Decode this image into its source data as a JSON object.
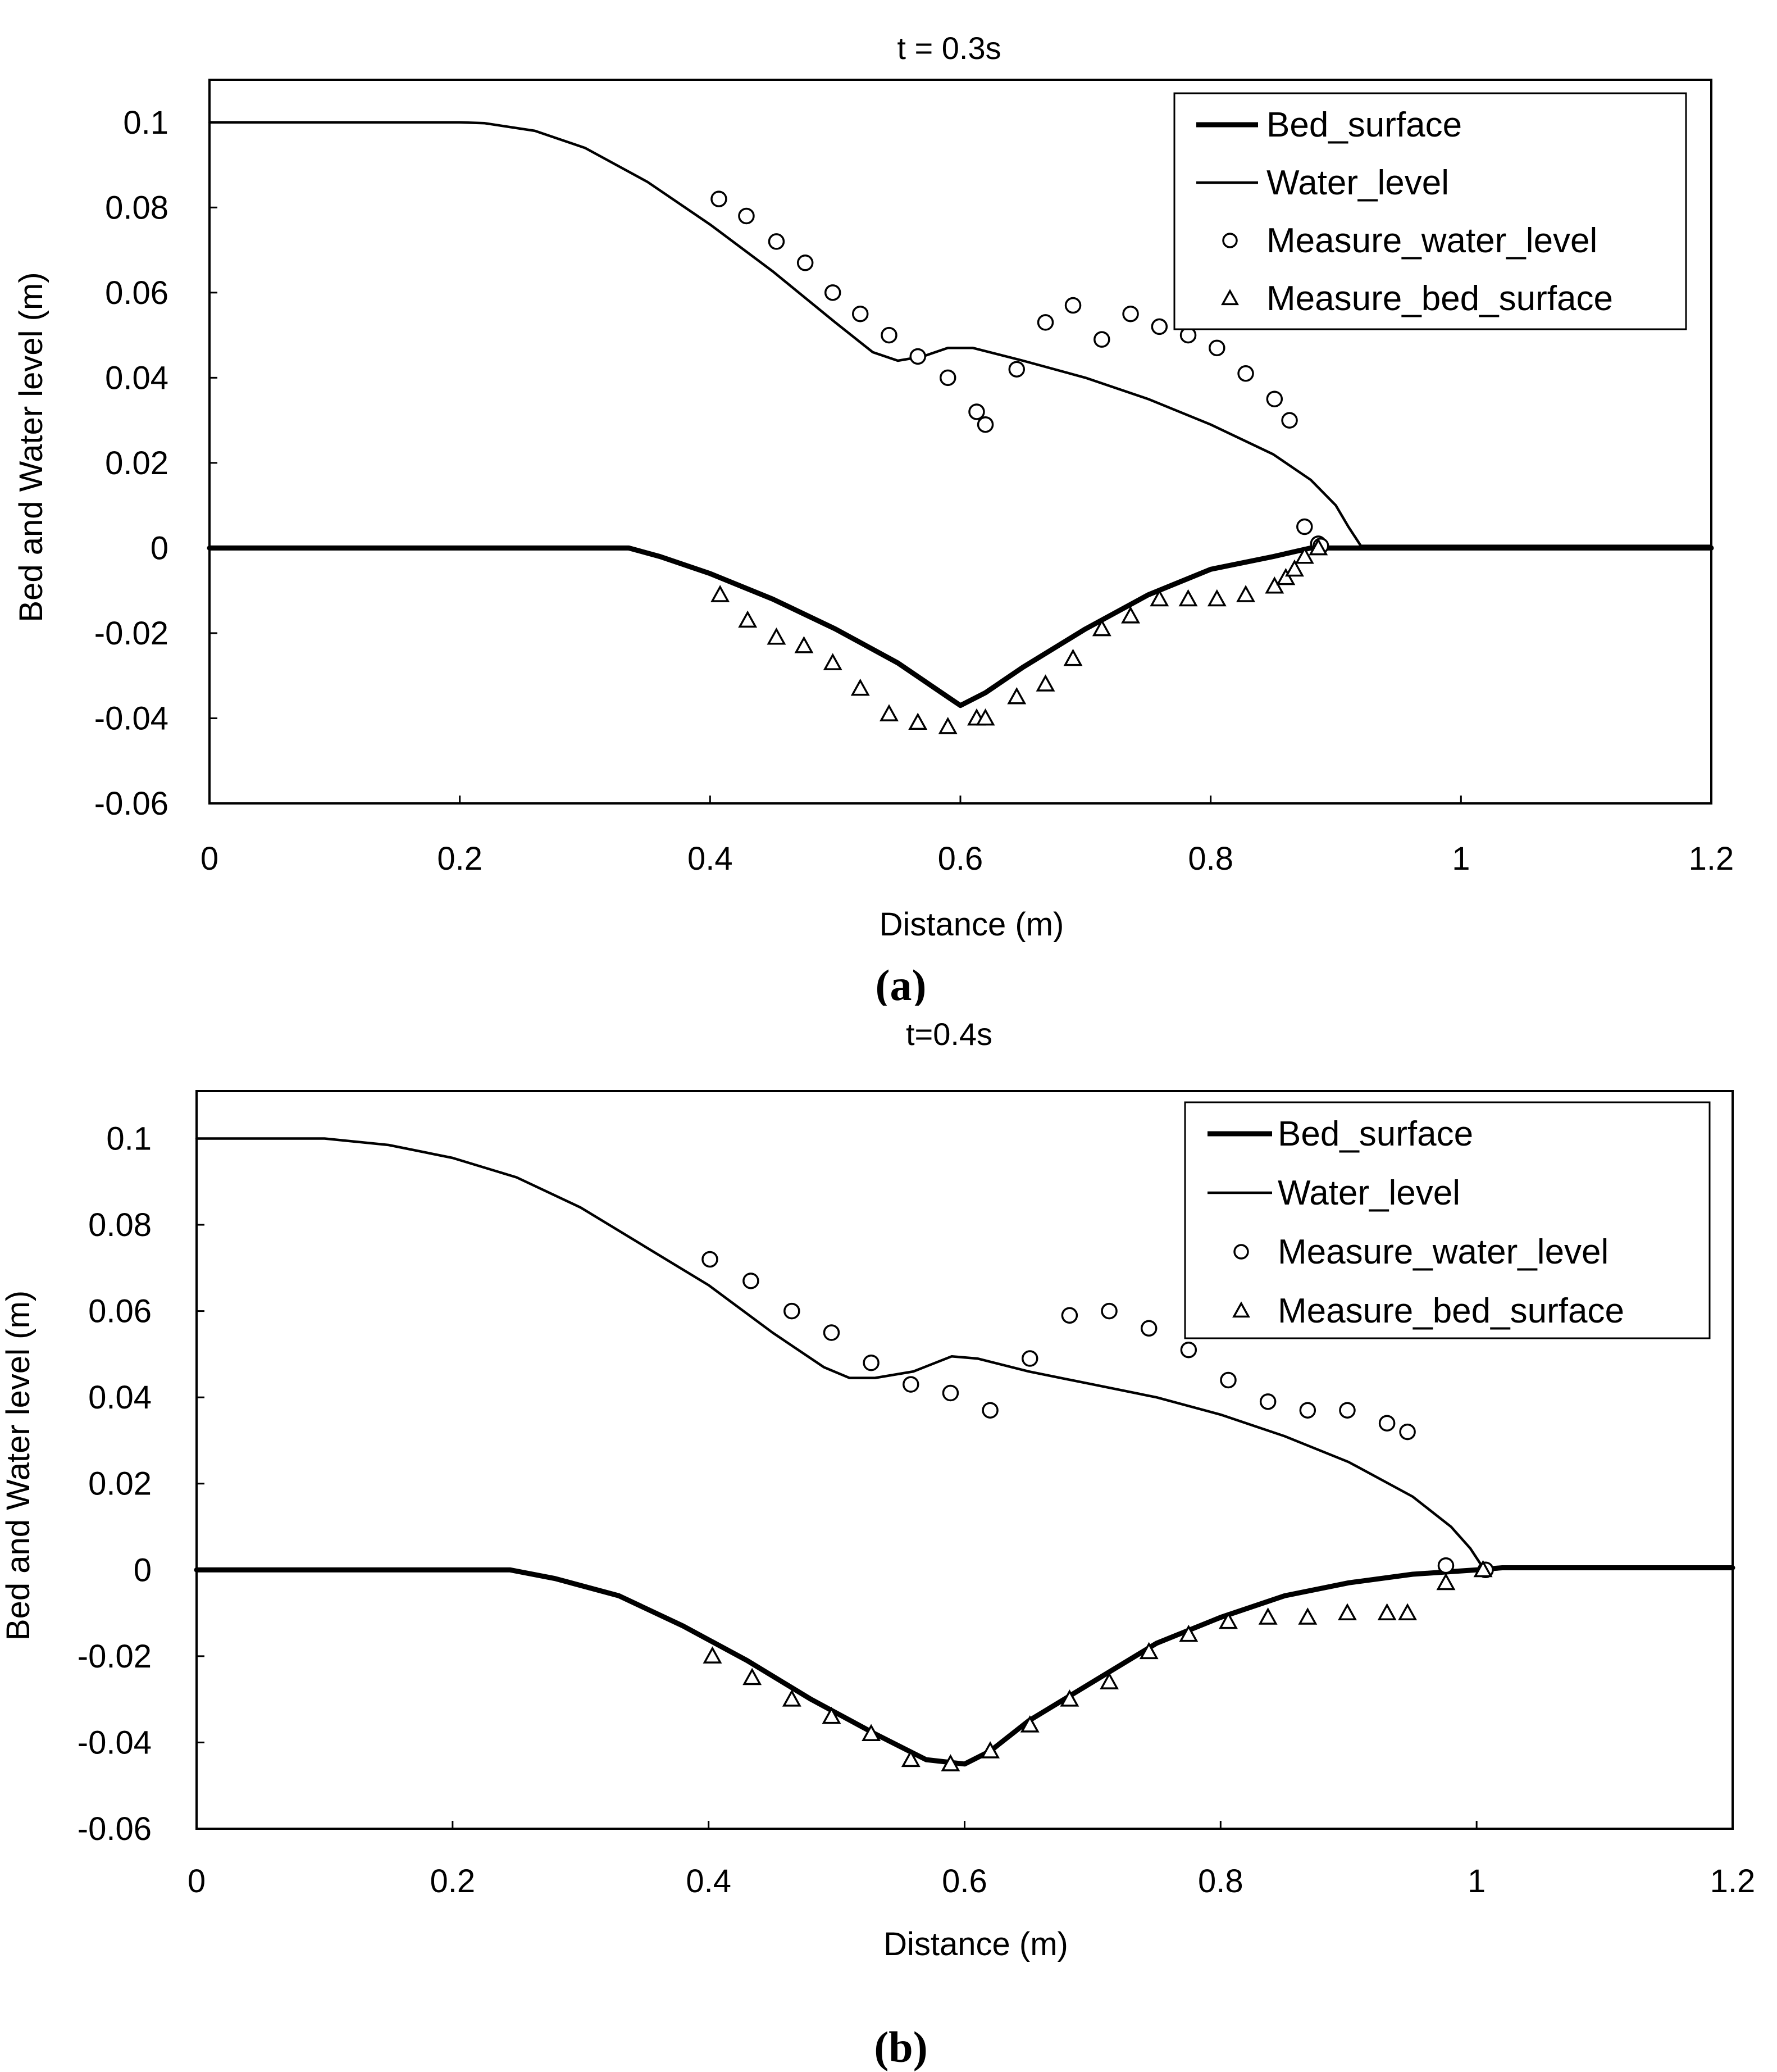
{
  "chart_data": [
    {
      "id": "a",
      "type": "line",
      "title": "t = 0.3s",
      "caption_letter": "a",
      "xlabel": "Distance (m)",
      "ylabel": "Bed and Water level (m)",
      "xlim": [
        0,
        1.2
      ],
      "ylim": [
        -0.06,
        0.11
      ],
      "xticks": [
        "0",
        "0.2",
        "0.4",
        "0.6",
        "0.8",
        "1",
        "1.2"
      ],
      "xtick_values": [
        0,
        0.2,
        0.4,
        0.6,
        0.8,
        1.0,
        1.2
      ],
      "yticks": [
        "0.1",
        "0.08",
        "0.06",
        "0.04",
        "0.02",
        "0",
        "-0.02",
        "-0.04",
        "-0.06"
      ],
      "ytick_values": [
        0.1,
        0.08,
        0.06,
        0.04,
        0.02,
        0,
        -0.02,
        -0.04,
        -0.06
      ],
      "legend": {
        "position": "top-right"
      },
      "series": [
        {
          "name": "Bed_surface",
          "kind": "line",
          "style": "thick",
          "x": [
            0,
            0.335,
            0.36,
            0.4,
            0.45,
            0.5,
            0.55,
            0.59,
            0.6,
            0.62,
            0.65,
            0.7,
            0.75,
            0.8,
            0.85,
            0.88,
            0.9,
            1.2
          ],
          "y": [
            0,
            0,
            -0.002,
            -0.006,
            -0.012,
            -0.019,
            -0.027,
            -0.035,
            -0.037,
            -0.034,
            -0.028,
            -0.019,
            -0.011,
            -0.005,
            -0.002,
            0,
            0,
            0
          ]
        },
        {
          "name": "Water_level",
          "kind": "line",
          "style": "thin",
          "x": [
            0,
            0.2,
            0.22,
            0.26,
            0.3,
            0.35,
            0.4,
            0.45,
            0.5,
            0.53,
            0.55,
            0.57,
            0.59,
            0.61,
            0.65,
            0.7,
            0.75,
            0.8,
            0.85,
            0.88,
            0.9,
            0.91,
            0.92,
            1.2
          ],
          "y": [
            0.1,
            0.1,
            0.0998,
            0.098,
            0.094,
            0.086,
            0.076,
            0.065,
            0.053,
            0.046,
            0.044,
            0.045,
            0.047,
            0.047,
            0.044,
            0.04,
            0.035,
            0.029,
            0.022,
            0.016,
            0.01,
            0.005,
            0.0005,
            0.0005
          ]
        },
        {
          "name": "Measure_water_level",
          "kind": "scatter",
          "marker": "circle",
          "x": [
            0.407,
            0.429,
            0.453,
            0.476,
            0.498,
            0.52,
            0.543,
            0.566,
            0.59,
            0.613,
            0.62,
            0.645,
            0.668,
            0.69,
            0.713,
            0.736,
            0.759,
            0.782,
            0.805,
            0.828,
            0.851,
            0.863,
            0.875,
            0.886,
            0.888
          ],
          "y": [
            0.082,
            0.078,
            0.072,
            0.067,
            0.06,
            0.055,
            0.05,
            0.045,
            0.04,
            0.032,
            0.029,
            0.042,
            0.053,
            0.057,
            0.049,
            0.055,
            0.052,
            0.05,
            0.047,
            0.041,
            0.035,
            0.03,
            0.005,
            0.001,
            0.0005
          ]
        },
        {
          "name": "Measure_bed_surface",
          "kind": "scatter",
          "marker": "triangle",
          "x": [
            0.408,
            0.43,
            0.453,
            0.475,
            0.498,
            0.52,
            0.543,
            0.566,
            0.59,
            0.613,
            0.62,
            0.645,
            0.668,
            0.69,
            0.713,
            0.736,
            0.759,
            0.782,
            0.805,
            0.828,
            0.851,
            0.86,
            0.867,
            0.875,
            0.886
          ],
          "y": [
            -0.011,
            -0.017,
            -0.021,
            -0.023,
            -0.027,
            -0.033,
            -0.039,
            -0.041,
            -0.042,
            -0.04,
            -0.04,
            -0.035,
            -0.032,
            -0.026,
            -0.019,
            -0.016,
            -0.012,
            -0.012,
            -0.012,
            -0.011,
            -0.009,
            -0.007,
            -0.005,
            -0.002,
            0
          ]
        }
      ]
    },
    {
      "id": "b",
      "type": "line",
      "title": "t=0.4s",
      "caption_letter": "b",
      "xlabel": "Distance (m)",
      "ylabel": "Bed and Water level (m)",
      "xlim": [
        0,
        1.2
      ],
      "ylim": [
        -0.06,
        0.111
      ],
      "xticks": [
        "0",
        "0.2",
        "0.4",
        "0.6",
        "0.8",
        "1",
        "1.2"
      ],
      "xtick_values": [
        0,
        0.2,
        0.4,
        0.6,
        0.8,
        1.0,
        1.2
      ],
      "yticks": [
        "0.1",
        "0.08",
        "0.06",
        "0.04",
        "0.02",
        "0",
        "-0.02",
        "-0.04",
        "-0.06"
      ],
      "ytick_values": [
        0.1,
        0.08,
        0.06,
        0.04,
        0.02,
        0,
        -0.02,
        -0.04,
        -0.06
      ],
      "legend": {
        "position": "top-right"
      },
      "series": [
        {
          "name": "Bed_surface",
          "kind": "line",
          "style": "thick",
          "x": [
            0,
            0.245,
            0.28,
            0.33,
            0.38,
            0.43,
            0.48,
            0.53,
            0.57,
            0.6,
            0.62,
            0.65,
            0.7,
            0.75,
            0.8,
            0.85,
            0.9,
            0.95,
            1.0,
            1.02,
            1.2
          ],
          "y": [
            0,
            0,
            -0.002,
            -0.006,
            -0.013,
            -0.021,
            -0.03,
            -0.038,
            -0.044,
            -0.045,
            -0.042,
            -0.035,
            -0.026,
            -0.017,
            -0.011,
            -0.006,
            -0.003,
            -0.001,
            0,
            0.0005,
            0.0005
          ]
        },
        {
          "name": "Water_level",
          "kind": "line",
          "style": "thin",
          "x": [
            0,
            0.1,
            0.15,
            0.2,
            0.25,
            0.3,
            0.35,
            0.4,
            0.45,
            0.49,
            0.51,
            0.53,
            0.56,
            0.59,
            0.61,
            0.65,
            0.7,
            0.75,
            0.8,
            0.85,
            0.9,
            0.95,
            0.98,
            0.995,
            1.005,
            1.2
          ],
          "y": [
            0.1,
            0.1,
            0.0985,
            0.0955,
            0.091,
            0.084,
            0.075,
            0.066,
            0.055,
            0.047,
            0.0445,
            0.0445,
            0.046,
            0.0495,
            0.049,
            0.046,
            0.043,
            0.04,
            0.036,
            0.031,
            0.025,
            0.017,
            0.01,
            0.005,
            0.0005,
            0.0005
          ]
        },
        {
          "name": "Measure_water_level",
          "kind": "scatter",
          "marker": "circle",
          "x": [
            0.401,
            0.433,
            0.465,
            0.496,
            0.527,
            0.558,
            0.589,
            0.62,
            0.651,
            0.682,
            0.713,
            0.744,
            0.775,
            0.806,
            0.837,
            0.868,
            0.899,
            0.93,
            0.946,
            0.976,
            1.007
          ],
          "y": [
            0.072,
            0.067,
            0.06,
            0.055,
            0.048,
            0.043,
            0.041,
            0.037,
            0.049,
            0.059,
            0.06,
            0.056,
            0.051,
            0.044,
            0.039,
            0.037,
            0.037,
            0.034,
            0.032,
            0.001,
            0
          ]
        },
        {
          "name": "Measure_bed_surface",
          "kind": "scatter",
          "marker": "triangle",
          "x": [
            0.403,
            0.434,
            0.465,
            0.496,
            0.527,
            0.558,
            0.589,
            0.62,
            0.651,
            0.682,
            0.713,
            0.744,
            0.775,
            0.806,
            0.837,
            0.868,
            0.899,
            0.93,
            0.946,
            0.976,
            1.005
          ],
          "y": [
            -0.02,
            -0.025,
            -0.03,
            -0.034,
            -0.038,
            -0.044,
            -0.045,
            -0.042,
            -0.036,
            -0.03,
            -0.026,
            -0.019,
            -0.015,
            -0.012,
            -0.011,
            -0.011,
            -0.01,
            -0.01,
            -0.01,
            -0.003,
            0
          ]
        }
      ]
    }
  ]
}
